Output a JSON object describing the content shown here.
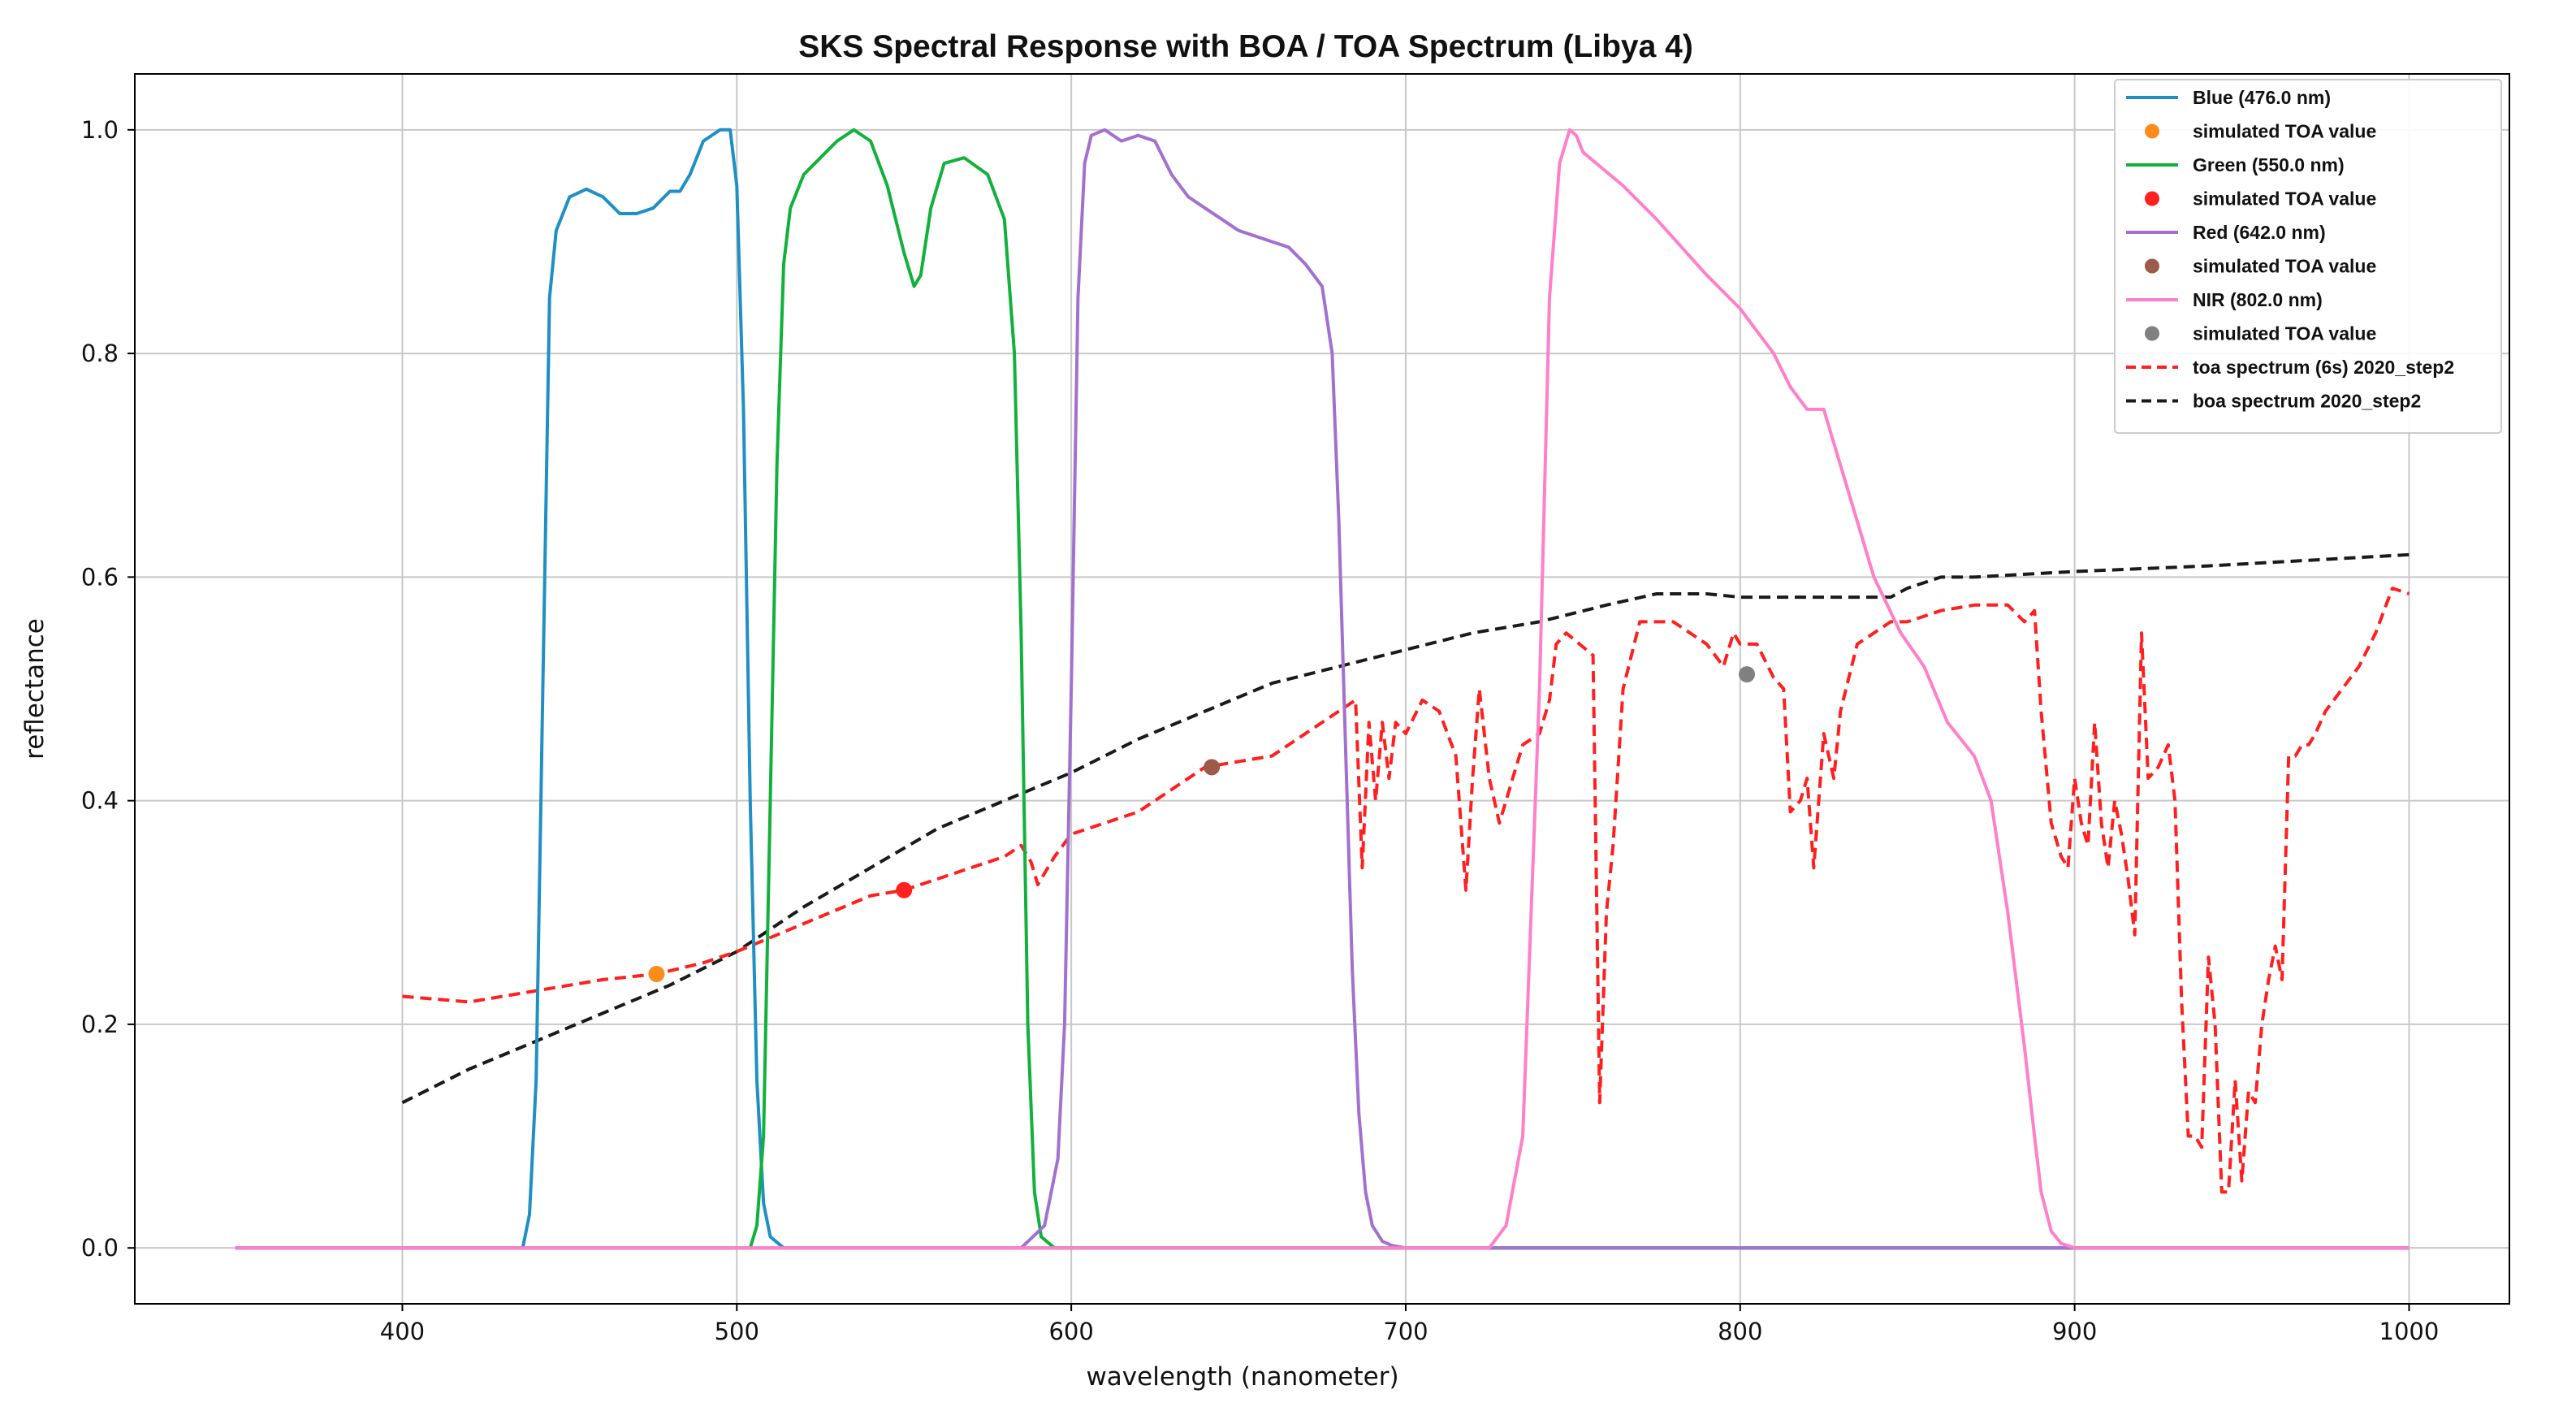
{
  "chart_data": {
    "type": "line",
    "title": "SKS Spectral Response with BOA / TOA Spectrum (Libya 4)",
    "xlabel": "wavelength (nanometer)",
    "ylabel": "reflectance",
    "xlim": [
      320,
      1030
    ],
    "ylim": [
      -0.05,
      1.05
    ],
    "xticks": [
      400,
      500,
      600,
      700,
      800,
      900,
      1000
    ],
    "xtick_labels": [
      "400",
      "500",
      "600",
      "700",
      "800",
      "900",
      "1000"
    ],
    "yticks": [
      0.0,
      0.2,
      0.4,
      0.6,
      0.8,
      1.0
    ],
    "ytick_labels": [
      "0.0",
      "0.2",
      "0.4",
      "0.6",
      "0.8",
      "1.0"
    ],
    "grid": true,
    "legend_position": "top-right",
    "colors": {
      "blue": "#1f8fc4",
      "green": "#12b03c",
      "red": "#a270cf",
      "nir": "#ff7fc8",
      "toa": "#ff1f1f",
      "boa": "#1a1a1a",
      "dot_blue": "#ff8c1a",
      "dot_green": "#ff2020",
      "dot_red": "#9c5a48",
      "dot_nir": "#808080"
    },
    "series": [
      {
        "name": "Blue (476.0 nm)",
        "color_key": "blue",
        "style": "solid",
        "x": [
          350,
          436,
          438,
          440,
          442,
          444,
          446,
          450,
          455,
          460,
          465,
          470,
          475,
          480,
          483,
          486,
          490,
          495,
          498,
          500,
          502,
          504,
          506,
          508,
          510,
          514,
          520,
          1000
        ],
        "y": [
          0,
          0,
          0.03,
          0.15,
          0.5,
          0.85,
          0.91,
          0.94,
          0.947,
          0.94,
          0.925,
          0.925,
          0.93,
          0.945,
          0.945,
          0.96,
          0.99,
          1.0,
          1.0,
          0.95,
          0.75,
          0.4,
          0.15,
          0.04,
          0.01,
          0,
          0,
          0
        ]
      },
      {
        "name": "Green (550.0 nm)",
        "color_key": "green",
        "style": "solid",
        "x": [
          350,
          504,
          506,
          508,
          510,
          512,
          514,
          516,
          520,
          525,
          530,
          535,
          540,
          545,
          550,
          553,
          555,
          558,
          562,
          568,
          575,
          580,
          583,
          585,
          587,
          589,
          591,
          595,
          600,
          1000
        ],
        "y": [
          0,
          0,
          0.02,
          0.1,
          0.4,
          0.7,
          0.88,
          0.93,
          0.96,
          0.975,
          0.99,
          1.0,
          0.99,
          0.95,
          0.89,
          0.86,
          0.87,
          0.93,
          0.97,
          0.975,
          0.96,
          0.92,
          0.8,
          0.55,
          0.2,
          0.05,
          0.01,
          0,
          0,
          0
        ]
      },
      {
        "name": "Red (642.0 nm)",
        "color_key": "red",
        "style": "solid",
        "x": [
          350,
          585,
          592,
          596,
          598,
          600,
          602,
          604,
          606,
          610,
          615,
          620,
          625,
          630,
          635,
          640,
          645,
          650,
          655,
          660,
          665,
          670,
          675,
          678,
          680,
          682,
          684,
          686,
          688,
          690,
          693,
          696,
          700,
          1000
        ],
        "y": [
          0,
          0,
          0.02,
          0.08,
          0.2,
          0.5,
          0.85,
          0.97,
          0.995,
          1.0,
          0.99,
          0.995,
          0.99,
          0.96,
          0.94,
          0.93,
          0.92,
          0.91,
          0.905,
          0.9,
          0.895,
          0.88,
          0.86,
          0.8,
          0.65,
          0.45,
          0.25,
          0.12,
          0.05,
          0.02,
          0.006,
          0.002,
          0,
          0
        ]
      },
      {
        "name": "NIR (802.0 nm)",
        "color_key": "nir",
        "style": "solid",
        "x": [
          350,
          725,
          730,
          735,
          740,
          743,
          746,
          749,
          751,
          753,
          757,
          765,
          775,
          790,
          800,
          810,
          815,
          820,
          825,
          830,
          840,
          848,
          855,
          862,
          870,
          875,
          880,
          885,
          888,
          890,
          893,
          896,
          900,
          1000
        ],
        "y": [
          0,
          0,
          0.02,
          0.1,
          0.5,
          0.85,
          0.97,
          1.0,
          0.995,
          0.98,
          0.97,
          0.95,
          0.92,
          0.87,
          0.84,
          0.8,
          0.77,
          0.75,
          0.75,
          0.7,
          0.6,
          0.55,
          0.52,
          0.47,
          0.44,
          0.4,
          0.3,
          0.18,
          0.1,
          0.05,
          0.015,
          0.004,
          0,
          0
        ]
      },
      {
        "name": "toa spectrum (6s) 2020_step2",
        "color_key": "toa",
        "style": "dashed",
        "x": [
          400,
          420,
          440,
          460,
          476,
          490,
          500,
          520,
          540,
          550,
          560,
          570,
          580,
          585,
          588,
          590,
          595,
          600,
          620,
          640,
          660,
          670,
          680,
          685,
          687,
          689,
          691,
          693,
          695,
          697,
          700,
          705,
          710,
          715,
          718,
          720,
          722,
          725,
          728,
          732,
          735,
          740,
          743,
          745,
          748,
          752,
          756,
          758,
          760,
          762,
          765,
          770,
          780,
          790,
          795,
          798,
          800,
          805,
          810,
          813,
          815,
          818,
          820,
          822,
          825,
          828,
          830,
          835,
          840,
          845,
          850,
          860,
          870,
          880,
          885,
          888,
          890,
          893,
          896,
          898,
          900,
          902,
          904,
          906,
          908,
          910,
          912,
          914,
          916,
          918,
          920,
          922,
          925,
          928,
          930,
          932,
          934,
          936,
          938,
          940,
          942,
          944,
          946,
          948,
          950,
          952,
          954,
          956,
          958,
          960,
          962,
          964,
          966,
          968,
          970,
          972,
          975,
          980,
          985,
          990,
          995,
          1000
        ],
        "y": [
          0.225,
          0.22,
          0.23,
          0.24,
          0.245,
          0.255,
          0.265,
          0.29,
          0.315,
          0.32,
          0.33,
          0.34,
          0.35,
          0.36,
          0.345,
          0.325,
          0.35,
          0.37,
          0.39,
          0.43,
          0.44,
          0.46,
          0.48,
          0.49,
          0.34,
          0.47,
          0.4,
          0.47,
          0.42,
          0.47,
          0.46,
          0.49,
          0.48,
          0.44,
          0.32,
          0.42,
          0.5,
          0.42,
          0.38,
          0.42,
          0.45,
          0.46,
          0.49,
          0.54,
          0.55,
          0.54,
          0.53,
          0.13,
          0.3,
          0.36,
          0.5,
          0.56,
          0.56,
          0.54,
          0.52,
          0.55,
          0.54,
          0.54,
          0.51,
          0.5,
          0.39,
          0.4,
          0.42,
          0.34,
          0.46,
          0.42,
          0.48,
          0.54,
          0.55,
          0.56,
          0.56,
          0.57,
          0.575,
          0.575,
          0.56,
          0.57,
          0.48,
          0.38,
          0.35,
          0.34,
          0.42,
          0.38,
          0.36,
          0.47,
          0.38,
          0.34,
          0.4,
          0.37,
          0.33,
          0.28,
          0.55,
          0.42,
          0.43,
          0.45,
          0.4,
          0.22,
          0.1,
          0.1,
          0.09,
          0.26,
          0.2,
          0.05,
          0.05,
          0.15,
          0.06,
          0.14,
          0.13,
          0.2,
          0.24,
          0.27,
          0.24,
          0.44,
          0.44,
          0.45,
          0.45,
          0.46,
          0.48,
          0.5,
          0.52,
          0.55,
          0.59,
          0.585
        ]
      },
      {
        "name": "boa spectrum 2020_step2",
        "color_key": "boa",
        "style": "dashed",
        "x": [
          400,
          420,
          440,
          460,
          480,
          490,
          500,
          510,
          520,
          540,
          560,
          580,
          600,
          620,
          640,
          660,
          680,
          700,
          720,
          740,
          760,
          775,
          790,
          800,
          810,
          820,
          830,
          840,
          845,
          850,
          860,
          870,
          900,
          940,
          970,
          1000
        ],
        "y": [
          0.13,
          0.16,
          0.185,
          0.21,
          0.235,
          0.25,
          0.265,
          0.285,
          0.305,
          0.34,
          0.375,
          0.4,
          0.425,
          0.455,
          0.48,
          0.505,
          0.52,
          0.535,
          0.55,
          0.56,
          0.575,
          0.585,
          0.585,
          0.582,
          0.582,
          0.582,
          0.582,
          0.582,
          0.582,
          0.59,
          0.6,
          0.6,
          0.605,
          0.61,
          0.615,
          0.62
        ]
      }
    ],
    "points": [
      {
        "name": "simulated TOA value",
        "band": "Blue",
        "x": 476,
        "y": 0.245,
        "color_key": "dot_blue"
      },
      {
        "name": "simulated TOA value",
        "band": "Green",
        "x": 550,
        "y": 0.32,
        "color_key": "dot_green"
      },
      {
        "name": "simulated TOA value",
        "band": "Red",
        "x": 642,
        "y": 0.43,
        "color_key": "dot_red"
      },
      {
        "name": "simulated TOA value",
        "band": "NIR",
        "x": 802,
        "y": 0.513,
        "color_key": "dot_nir"
      }
    ],
    "legend": [
      {
        "label": "Blue (476.0 nm)",
        "kind": "line",
        "color_key": "blue"
      },
      {
        "label": "simulated TOA value",
        "kind": "dot",
        "color_key": "dot_blue"
      },
      {
        "label": "Green (550.0 nm)",
        "kind": "line",
        "color_key": "green"
      },
      {
        "label": "simulated TOA value",
        "kind": "dot",
        "color_key": "dot_green"
      },
      {
        "label": "Red (642.0 nm)",
        "kind": "line",
        "color_key": "red"
      },
      {
        "label": "simulated TOA value",
        "kind": "dot",
        "color_key": "dot_red"
      },
      {
        "label": "NIR (802.0 nm)",
        "kind": "line",
        "color_key": "nir"
      },
      {
        "label": "simulated TOA value",
        "kind": "dot",
        "color_key": "dot_nir"
      },
      {
        "label": "toa spectrum (6s) 2020_step2",
        "kind": "dashed",
        "color_key": "toa"
      },
      {
        "label": "boa spectrum 2020_step2",
        "kind": "dashed",
        "color_key": "boa"
      }
    ]
  }
}
